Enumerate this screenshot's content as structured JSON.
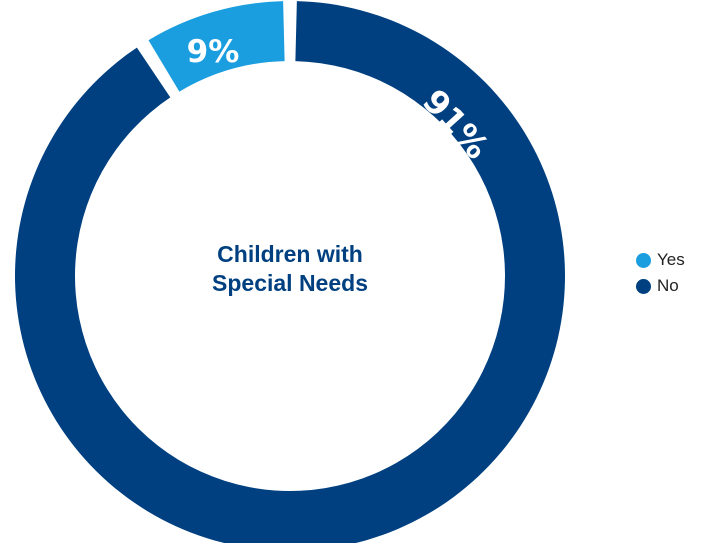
{
  "chart_data": {
    "type": "pie",
    "title_lines": [
      "Children with",
      "Special Needs"
    ],
    "categories": [
      "Yes",
      "No"
    ],
    "values": [
      9,
      91
    ],
    "labels": [
      "9%",
      "91%"
    ],
    "colors": [
      "#1a9ee0",
      "#004080"
    ],
    "legend": {
      "position": "right",
      "entries": [
        "Yes",
        "No"
      ]
    }
  }
}
